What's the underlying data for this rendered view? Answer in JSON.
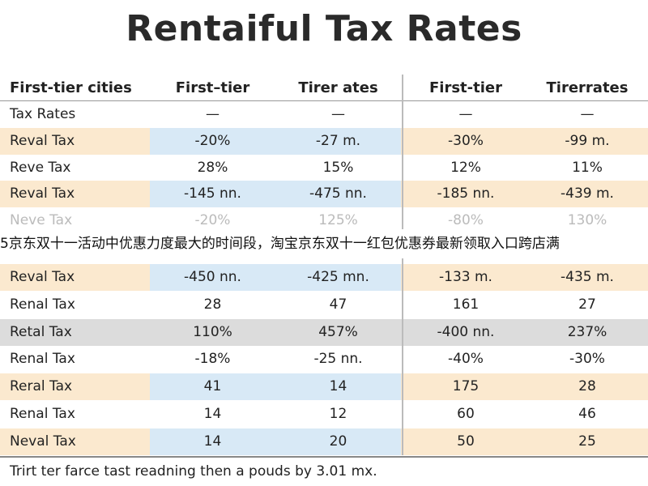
{
  "title": "Rentaiful Tax Rates",
  "table": {
    "header": [
      "First-tier cities",
      "First–tier",
      "Tirer ates",
      "First-tier",
      "Tirerrates"
    ],
    "rows": [
      [
        "Tax Rates",
        "—",
        "—",
        "—",
        "—"
      ],
      [
        "Reval Tax",
        "-20%",
        "-27 m.",
        "-30%",
        "-99 m."
      ],
      [
        "Reve Tax",
        "28%",
        "15%",
        "12%",
        "11%"
      ],
      [
        "Reval Tax",
        "-145 nn.",
        "-475 nn.",
        "-185 nn.",
        "-439 m."
      ],
      [
        "Neve Tax",
        "-20%",
        "125%",
        "-80%",
        "130%"
      ],
      [
        "Reval Tax",
        "-450 nn.",
        "-425 mn.",
        "-133 m.",
        "-435 m."
      ],
      [
        "Renal Tax",
        "28",
        "47",
        "161",
        "27"
      ],
      [
        "Retal Tax",
        "110%",
        "457%",
        "-400 nn.",
        "237%"
      ],
      [
        "Renal Tax",
        "-18%",
        "-25 nn.",
        "-40%",
        "-30%"
      ],
      [
        "Reral Tax",
        "41",
        "14",
        "175",
        "28"
      ],
      [
        "Renal Tax",
        "14",
        "12",
        "60",
        "46"
      ],
      [
        "Neval Tax",
        "14",
        "20",
        "50",
        "25"
      ]
    ]
  },
  "banner": "5京东双十一活动中优惠力度最大的时间段，淘宝京东双十一红包优惠券最新领取入口跨店满",
  "footer": "Trirt ter farce tast readning then a pouds by 3.01 mx."
}
